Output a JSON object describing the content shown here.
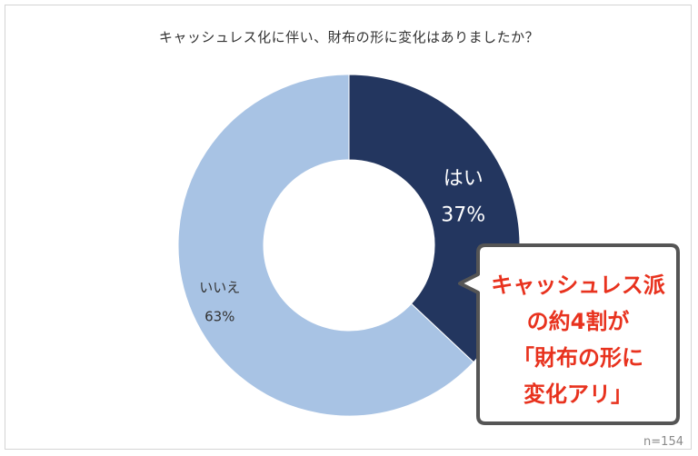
{
  "chart_data": {
    "type": "pie",
    "title": "キャッシュレス化に伴い、財布の形に変化はありましたか？",
    "slices": [
      {
        "label": "はい",
        "value": 37,
        "display": "37%",
        "color": "#23365f",
        "text_color": "#ffffff"
      },
      {
        "label": "いいえ",
        "value": 63,
        "display": "63%",
        "color": "#a8c3e4",
        "text_color": "#333333"
      }
    ],
    "donut": true,
    "sample_note": "n=154",
    "callout": {
      "lines": [
        "キャッシュレス派",
        "の約4割が",
        "「財布の形に",
        "変化アリ」"
      ],
      "text_color": "#e8321e",
      "border_color": "#555555"
    }
  }
}
